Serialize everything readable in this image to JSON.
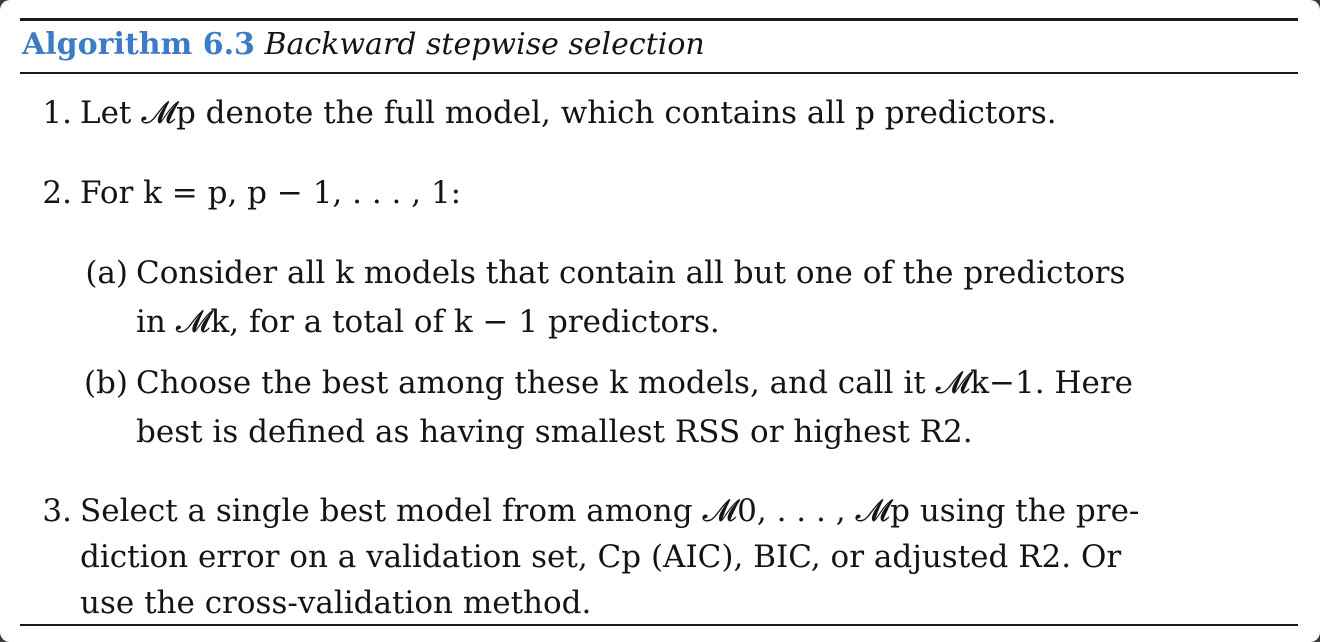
{
  "algorithm": {
    "label": "Algorithm 6.3",
    "name": "Backward stepwise selection"
  },
  "steps": [
    {
      "number": "1.",
      "lines": [
        "Let 𝓜p denote the full model, which contains all p predictors."
      ]
    },
    {
      "number": "2.",
      "lines": [
        "For k = p, p − 1, . . . , 1:"
      ],
      "substeps": [
        {
          "label": "(a)",
          "lines": [
            "Consider all k models that contain all but one of the predictors",
            "in 𝓜k, for a total of k − 1 predictors."
          ]
        },
        {
          "label": "(b)",
          "lines": [
            "Choose the best among these k models, and call it 𝓜k−1. Here",
            "best is defined as having smallest RSS or highest R2."
          ]
        }
      ]
    },
    {
      "number": "3.",
      "lines": [
        "Select a single best model from among 𝓜0, . . . , 𝓜p using the pre-",
        "diction error on a validation set, Cp (AIC), BIC, or adjusted R2. Or",
        "use the cross-validation method."
      ]
    }
  ]
}
